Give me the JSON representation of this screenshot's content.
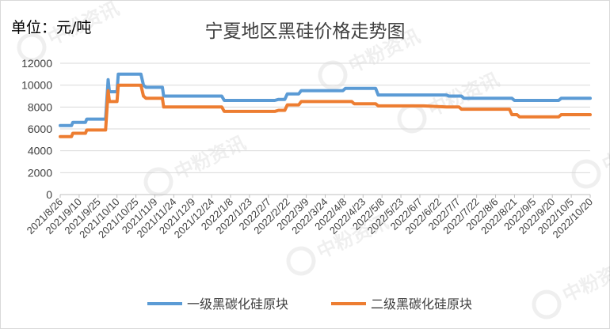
{
  "header": {
    "unit_label": "单位：元/吨",
    "title": "宁夏地区黑硅价格走势图"
  },
  "watermark": {
    "text": "中粉资讯"
  },
  "colors": {
    "series1": "#5b9bd5",
    "series2": "#ed7d31",
    "grid": "#d9d9d9",
    "axis": "#bfbfbf"
  },
  "chart_data": {
    "type": "line",
    "title": "宁夏地区黑硅价格走势图",
    "ylabel": "单位：元/吨",
    "ylim": [
      0,
      12000
    ],
    "yticks": [
      0,
      2000,
      4000,
      6000,
      8000,
      10000,
      12000
    ],
    "xlim": [
      "2021-08-26",
      "2022-10-20"
    ],
    "x_tick_labels": [
      "2021/8/26",
      "2021/9/10",
      "2021/9/25",
      "2021/10/10",
      "2021/10/25",
      "2021/11/9",
      "2021/11/24",
      "2021/12/9",
      "2021/12/24",
      "2022/1/8",
      "2022/1/23",
      "2022/2/7",
      "2022/2/22",
      "2022/3/9",
      "2022/3/24",
      "2022/4/8",
      "2022/4/23",
      "2022/5/8",
      "2022/5/23",
      "2022/6/7",
      "2022/6/22",
      "2022/7/7",
      "2022/7/22",
      "2022/8/6",
      "2022/8/21",
      "2022/9/5",
      "2022/9/20",
      "2022/10/5",
      "2022/10/20"
    ],
    "grid": true,
    "legend_position": "bottom",
    "series": [
      {
        "name": "一级黑碳化硅原块",
        "color": "#5b9bd5",
        "points": [
          [
            "2021-08-26",
            6300
          ],
          [
            "2021-09-04",
            6300
          ],
          [
            "2021-09-05",
            6600
          ],
          [
            "2021-09-15",
            6600
          ],
          [
            "2021-09-16",
            6900
          ],
          [
            "2021-10-01",
            6900
          ],
          [
            "2021-10-03",
            10500
          ],
          [
            "2021-10-04",
            9400
          ],
          [
            "2021-10-10",
            9400
          ],
          [
            "2021-10-11",
            11000
          ],
          [
            "2021-10-29",
            11000
          ],
          [
            "2021-10-31",
            10000
          ],
          [
            "2021-11-02",
            9800
          ],
          [
            "2021-11-15",
            9800
          ],
          [
            "2021-11-16",
            9000
          ],
          [
            "2022-01-01",
            9000
          ],
          [
            "2022-01-03",
            8600
          ],
          [
            "2022-02-12",
            8600
          ],
          [
            "2022-02-15",
            8700
          ],
          [
            "2022-02-20",
            8700
          ],
          [
            "2022-02-22",
            9200
          ],
          [
            "2022-03-03",
            9200
          ],
          [
            "2022-03-05",
            9500
          ],
          [
            "2022-04-07",
            9500
          ],
          [
            "2022-04-09",
            9700
          ],
          [
            "2022-05-03",
            9700
          ],
          [
            "2022-05-05",
            9100
          ],
          [
            "2022-06-10",
            9100
          ],
          [
            "2022-06-28",
            9100
          ],
          [
            "2022-06-30",
            9000
          ],
          [
            "2022-07-10",
            9000
          ],
          [
            "2022-07-12",
            8800
          ],
          [
            "2022-08-19",
            8800
          ],
          [
            "2022-08-21",
            8600
          ],
          [
            "2022-09-25",
            8600
          ],
          [
            "2022-09-27",
            8800
          ],
          [
            "2022-10-20",
            8800
          ]
        ]
      },
      {
        "name": "二级黑碳化硅原块",
        "color": "#ed7d31",
        "points": [
          [
            "2021-08-26",
            5300
          ],
          [
            "2021-09-04",
            5300
          ],
          [
            "2021-09-05",
            5600
          ],
          [
            "2021-09-15",
            5600
          ],
          [
            "2021-09-16",
            5900
          ],
          [
            "2021-10-01",
            5900
          ],
          [
            "2021-10-03",
            9500
          ],
          [
            "2021-10-04",
            8500
          ],
          [
            "2021-10-10",
            8500
          ],
          [
            "2021-10-11",
            10000
          ],
          [
            "2021-10-29",
            10000
          ],
          [
            "2021-10-31",
            9000
          ],
          [
            "2021-11-02",
            8800
          ],
          [
            "2021-11-15",
            8800
          ],
          [
            "2021-11-16",
            8000
          ],
          [
            "2022-01-01",
            8000
          ],
          [
            "2022-01-03",
            7600
          ],
          [
            "2022-02-12",
            7600
          ],
          [
            "2022-02-15",
            7700
          ],
          [
            "2022-02-20",
            7700
          ],
          [
            "2022-02-22",
            8200
          ],
          [
            "2022-03-03",
            8200
          ],
          [
            "2022-03-05",
            8500
          ],
          [
            "2022-04-14",
            8500
          ],
          [
            "2022-04-16",
            8300
          ],
          [
            "2022-05-03",
            8300
          ],
          [
            "2022-05-05",
            8100
          ],
          [
            "2022-06-10",
            8100
          ],
          [
            "2022-06-28",
            8000
          ],
          [
            "2022-07-08",
            8000
          ],
          [
            "2022-07-10",
            7800
          ],
          [
            "2022-08-17",
            7800
          ],
          [
            "2022-08-19",
            7300
          ],
          [
            "2022-08-23",
            7300
          ],
          [
            "2022-08-25",
            7100
          ],
          [
            "2022-09-25",
            7100
          ],
          [
            "2022-09-27",
            7300
          ],
          [
            "2022-10-20",
            7300
          ]
        ]
      }
    ]
  }
}
